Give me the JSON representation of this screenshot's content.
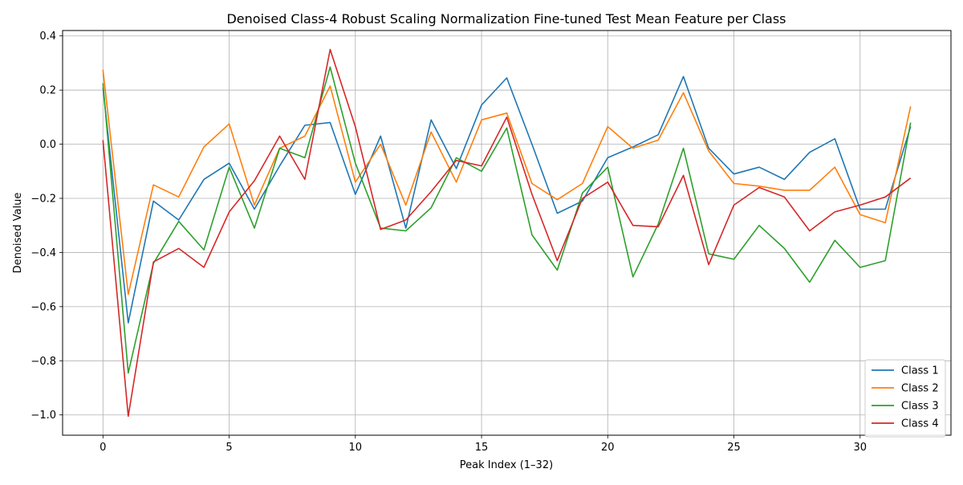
{
  "chart_data": {
    "type": "line",
    "title": "Denoised Class-4 Robust Scaling Normalization Fine-tuned Test Mean Feature per Class",
    "xlabel": "Peak Index (1–32)",
    "ylabel": "Denoised Value",
    "xlim": [
      -1.6,
      33.6
    ],
    "ylim": [
      -1.075,
      0.42
    ],
    "xticks": [
      0,
      5,
      10,
      15,
      20,
      25,
      30
    ],
    "xtick_labels": [
      "0",
      "5",
      "10",
      "15",
      "20",
      "25",
      "30"
    ],
    "yticks": [
      -1.0,
      -0.8,
      -0.6,
      -0.4,
      -0.2,
      0.0,
      0.2,
      0.4
    ],
    "ytick_labels": [
      "−1.0",
      "−0.8",
      "−0.6",
      "−0.4",
      "−0.2",
      "0.0",
      "0.2",
      "0.4"
    ],
    "grid": true,
    "legend_position": "lower-right",
    "x": [
      0,
      1,
      2,
      3,
      4,
      5,
      6,
      7,
      8,
      9,
      10,
      11,
      12,
      13,
      14,
      15,
      16,
      17,
      18,
      19,
      20,
      21,
      22,
      23,
      24,
      25,
      26,
      27,
      28,
      29,
      30,
      31,
      32
    ],
    "series": [
      {
        "name": "Class 1",
        "color": "#1f77b4",
        "values": [
          0.21,
          -0.66,
          -0.21,
          -0.28,
          -0.13,
          -0.07,
          -0.24,
          -0.08,
          0.07,
          0.08,
          -0.185,
          0.03,
          -0.31,
          0.09,
          -0.09,
          0.145,
          0.245,
          0.0,
          -0.255,
          -0.21,
          -0.05,
          -0.01,
          0.035,
          0.25,
          -0.015,
          -0.11,
          -0.085,
          -0.13,
          -0.03,
          0.02,
          -0.24,
          -0.24,
          0.065
        ]
      },
      {
        "name": "Class 2",
        "color": "#ff7f0e",
        "values": [
          0.275,
          -0.555,
          -0.15,
          -0.195,
          -0.01,
          0.075,
          -0.225,
          -0.015,
          0.03,
          0.215,
          -0.14,
          0.0,
          -0.225,
          0.045,
          -0.14,
          0.09,
          0.115,
          -0.145,
          -0.205,
          -0.145,
          0.065,
          -0.015,
          0.015,
          0.19,
          -0.025,
          -0.145,
          -0.155,
          -0.17,
          -0.17,
          -0.085,
          -0.26,
          -0.29,
          0.14
        ]
      },
      {
        "name": "Class 3",
        "color": "#2ca02c",
        "values": [
          0.225,
          -0.845,
          -0.44,
          -0.285,
          -0.39,
          -0.085,
          -0.31,
          -0.015,
          -0.05,
          0.285,
          -0.07,
          -0.31,
          -0.32,
          -0.235,
          -0.05,
          -0.1,
          0.06,
          -0.335,
          -0.465,
          -0.18,
          -0.085,
          -0.49,
          -0.295,
          -0.015,
          -0.405,
          -0.425,
          -0.3,
          -0.385,
          -0.51,
          -0.355,
          -0.455,
          -0.43,
          0.08
        ]
      },
      {
        "name": "Class 4",
        "color": "#d62728",
        "values": [
          0.015,
          -1.005,
          -0.435,
          -0.385,
          -0.455,
          -0.25,
          -0.135,
          0.03,
          -0.13,
          0.35,
          0.065,
          -0.315,
          -0.28,
          -0.175,
          -0.06,
          -0.08,
          0.1,
          -0.185,
          -0.43,
          -0.2,
          -0.14,
          -0.3,
          -0.305,
          -0.115,
          -0.445,
          -0.225,
          -0.16,
          -0.195,
          -0.32,
          -0.25,
          -0.225,
          -0.195,
          -0.125
        ]
      }
    ]
  }
}
